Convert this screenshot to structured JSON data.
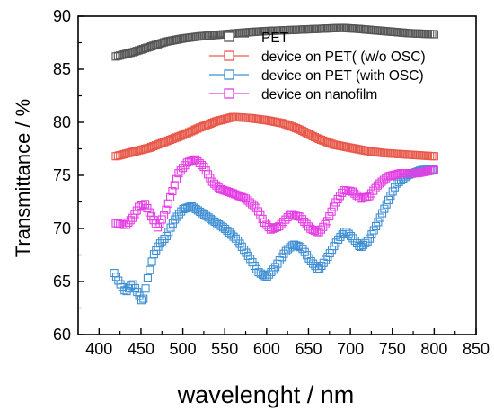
{
  "chart_data": {
    "type": "scatter",
    "xlabel": "wavelenght / nm",
    "ylabel": "Transmittance / %",
    "xlim": [
      375,
      850
    ],
    "ylim": [
      60,
      90
    ],
    "xticks": [
      400,
      450,
      500,
      550,
      600,
      650,
      700,
      750,
      800,
      850
    ],
    "yticks": [
      60,
      65,
      70,
      75,
      80,
      85,
      90
    ],
    "grid": false,
    "legend_position": "top-right",
    "marker": "open-square",
    "series": [
      {
        "name": "PET",
        "color": "#555555",
        "knots": [
          [
            420,
            86.2
          ],
          [
            440,
            86.6
          ],
          [
            460,
            87.1
          ],
          [
            480,
            87.6
          ],
          [
            500,
            87.9
          ],
          [
            520,
            88.1
          ],
          [
            550,
            88.3
          ],
          [
            580,
            88.5
          ],
          [
            600,
            88.6
          ],
          [
            630,
            88.7
          ],
          [
            660,
            88.8
          ],
          [
            690,
            88.9
          ],
          [
            710,
            88.8
          ],
          [
            740,
            88.6
          ],
          [
            770,
            88.4
          ],
          [
            800,
            88.3
          ]
        ]
      },
      {
        "name": "device on PET( (w/o  OSC)",
        "color": "#e8594b",
        "knots": [
          [
            420,
            76.8
          ],
          [
            440,
            77.2
          ],
          [
            460,
            77.6
          ],
          [
            480,
            78.2
          ],
          [
            500,
            78.8
          ],
          [
            520,
            79.5
          ],
          [
            540,
            80.1
          ],
          [
            560,
            80.5
          ],
          [
            580,
            80.4
          ],
          [
            600,
            80.2
          ],
          [
            620,
            79.9
          ],
          [
            640,
            79.3
          ],
          [
            660,
            78.5
          ],
          [
            680,
            77.9
          ],
          [
            700,
            77.6
          ],
          [
            720,
            77.3
          ],
          [
            740,
            77.1
          ],
          [
            760,
            77.0
          ],
          [
            780,
            76.9
          ],
          [
            800,
            76.8
          ]
        ]
      },
      {
        "name": "device on PET (with OSC)",
        "color": "#3f8fd4",
        "knots": [
          [
            418,
            65.8
          ],
          [
            425,
            64.8
          ],
          [
            432,
            64.0
          ],
          [
            440,
            64.8
          ],
          [
            447,
            63.8
          ],
          [
            452,
            63.0
          ],
          [
            458,
            65.3
          ],
          [
            465,
            67.5
          ],
          [
            472,
            68.5
          ],
          [
            480,
            69.2
          ],
          [
            490,
            70.8
          ],
          [
            500,
            71.8
          ],
          [
            510,
            72.1
          ],
          [
            520,
            71.6
          ],
          [
            535,
            70.8
          ],
          [
            550,
            70.0
          ],
          [
            565,
            68.9
          ],
          [
            580,
            67.2
          ],
          [
            590,
            65.9
          ],
          [
            600,
            65.4
          ],
          [
            610,
            66.3
          ],
          [
            622,
            67.8
          ],
          [
            632,
            68.5
          ],
          [
            642,
            68.2
          ],
          [
            652,
            67.0
          ],
          [
            662,
            66.1
          ],
          [
            672,
            67.2
          ],
          [
            684,
            68.8
          ],
          [
            694,
            69.8
          ],
          [
            704,
            69.0
          ],
          [
            712,
            68.2
          ],
          [
            722,
            68.9
          ],
          [
            733,
            70.6
          ],
          [
            745,
            72.6
          ],
          [
            755,
            74.2
          ],
          [
            768,
            75.0
          ],
          [
            785,
            75.5
          ],
          [
            800,
            75.6
          ]
        ]
      },
      {
        "name": "device on nanofilm",
        "color": "#e43ee4",
        "knots": [
          [
            420,
            70.5
          ],
          [
            432,
            70.3
          ],
          [
            440,
            71.0
          ],
          [
            448,
            72.1
          ],
          [
            455,
            72.3
          ],
          [
            462,
            71.2
          ],
          [
            470,
            70.1
          ],
          [
            478,
            71.3
          ],
          [
            487,
            73.4
          ],
          [
            495,
            75.2
          ],
          [
            505,
            76.2
          ],
          [
            515,
            76.5
          ],
          [
            525,
            75.8
          ],
          [
            535,
            74.4
          ],
          [
            545,
            73.7
          ],
          [
            560,
            73.3
          ],
          [
            575,
            72.8
          ],
          [
            588,
            71.9
          ],
          [
            597,
            70.6
          ],
          [
            605,
            69.9
          ],
          [
            615,
            70.2
          ],
          [
            628,
            71.3
          ],
          [
            640,
            71.1
          ],
          [
            652,
            70.0
          ],
          [
            662,
            69.6
          ],
          [
            672,
            70.6
          ],
          [
            682,
            72.4
          ],
          [
            692,
            73.6
          ],
          [
            702,
            73.5
          ],
          [
            712,
            72.8
          ],
          [
            722,
            73.0
          ],
          [
            733,
            74.1
          ],
          [
            745,
            74.9
          ],
          [
            760,
            75.2
          ],
          [
            780,
            75.2
          ],
          [
            800,
            75.5
          ]
        ]
      }
    ]
  }
}
